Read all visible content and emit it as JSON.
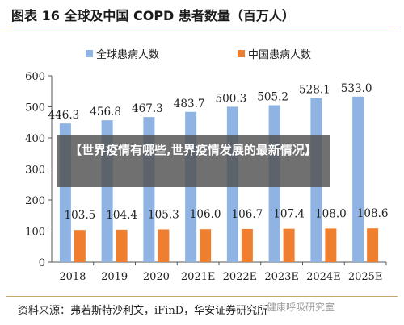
{
  "title": "图表 16 全球及中国 COPD 患者数量（百万人）",
  "source": "资料来源：弗若斯特沙利文，iFinD，华安证券研究所",
  "overlay": "【世界疫情有哪些,世界疫情发展的最新情况】",
  "watermark": "健康呼吸研究室",
  "colors": {
    "global": "#8fb4e3",
    "china": "#ef7f2f"
  },
  "chart_data": {
    "type": "bar",
    "title": "图表 16 全球及中国 COPD 患者数量（百万人）",
    "categories": [
      "2018",
      "2019",
      "2020",
      "2021E",
      "2022E",
      "2023E",
      "2024E",
      "2025E"
    ],
    "series": [
      {
        "name": "全球患病人数",
        "values": [
          446.3,
          456.8,
          467.3,
          483.7,
          500.3,
          505.2,
          528.1,
          533.0
        ]
      },
      {
        "name": "中国患病人数",
        "values": [
          103.5,
          104.4,
          105.3,
          106.0,
          106.7,
          107.4,
          108.0,
          108.6
        ]
      }
    ],
    "ylim": [
      0,
      600
    ],
    "yticks": [
      "0",
      "100",
      "200",
      "300",
      "400",
      "500",
      "600"
    ],
    "xlabel": "",
    "ylabel": "",
    "grid": false,
    "legend": "top"
  }
}
